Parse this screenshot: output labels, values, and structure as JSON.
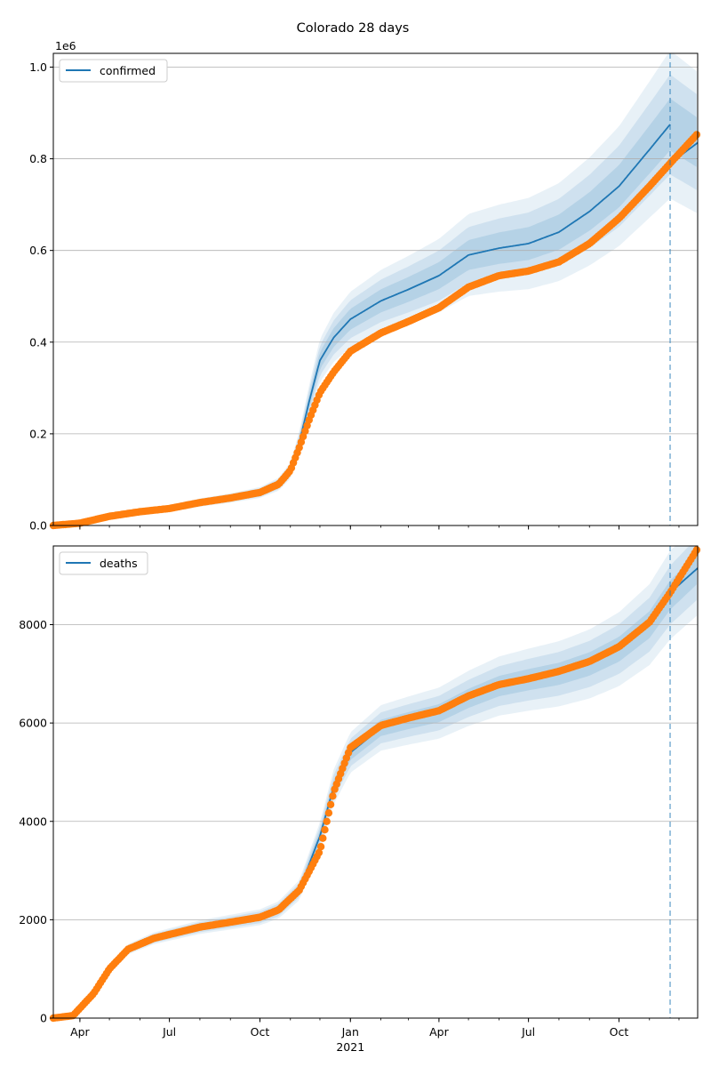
{
  "figure": {
    "title": "Colorado 28 days"
  },
  "chart_data": [
    {
      "type": "line",
      "name": "confirmed-panel",
      "legend": "confirmed",
      "legend_position": "top-left",
      "y_offset_label": "1e6",
      "xlim": [
        "2020-03-05",
        "2021-12-20"
      ],
      "ylim": [
        0,
        1030000
      ],
      "yticks": [
        0,
        200000,
        400000,
        600000,
        800000,
        1000000
      ],
      "ytick_labels": [
        "0.0",
        "0.2",
        "0.4",
        "0.6",
        "0.8",
        "1.0"
      ],
      "grid": "y",
      "forecast_start": "2021-11-22",
      "model_line": {
        "color": "#1f77b4",
        "x": [
          "2020-03-05",
          "2020-04-01",
          "2020-05-01",
          "2020-06-01",
          "2020-07-01",
          "2020-08-01",
          "2020-09-01",
          "2020-10-01",
          "2020-10-20",
          "2020-11-01",
          "2020-11-10",
          "2020-11-20",
          "2020-12-01",
          "2020-12-15",
          "2021-01-01",
          "2021-02-01",
          "2021-03-01",
          "2021-04-01",
          "2021-05-01",
          "2021-06-01",
          "2021-07-01",
          "2021-08-01",
          "2021-09-01",
          "2021-10-01",
          "2021-11-01",
          "2021-11-22",
          "2021-12-20"
        ],
        "y": [
          0,
          5000,
          20000,
          30000,
          37000,
          50000,
          60000,
          72000,
          90000,
          120000,
          180000,
          270000,
          360000,
          410000,
          450000,
          490000,
          515000,
          545000,
          590000,
          605000,
          615000,
          640000,
          685000,
          740000,
          820000,
          875000,
          835000
        ]
      },
      "observed": {
        "color": "#ff7f0e",
        "x": [
          "2020-03-05",
          "2020-04-01",
          "2020-05-01",
          "2020-06-01",
          "2020-07-01",
          "2020-08-01",
          "2020-09-01",
          "2020-10-01",
          "2020-10-20",
          "2020-11-01",
          "2020-11-10",
          "2020-11-20",
          "2020-12-01",
          "2020-12-15",
          "2021-01-01",
          "2021-02-01",
          "2021-03-01",
          "2021-04-01",
          "2021-05-01",
          "2021-06-01",
          "2021-07-01",
          "2021-08-01",
          "2021-09-01",
          "2021-10-01",
          "2021-11-01",
          "2021-11-22",
          "2021-12-20"
        ],
        "y": [
          0,
          5000,
          20000,
          30000,
          37000,
          50000,
          60000,
          72000,
          90000,
          120000,
          170000,
          230000,
          290000,
          335000,
          380000,
          420000,
          445000,
          475000,
          520000,
          545000,
          555000,
          575000,
          615000,
          670000,
          740000,
          790000,
          855000
        ]
      },
      "bands": {
        "color": "#1f77b4",
        "outer_rel": 0.18,
        "mid_rel": 0.12,
        "inner_rel": 0.06
      }
    },
    {
      "type": "line",
      "name": "deaths-panel",
      "legend": "deaths",
      "legend_position": "top-left",
      "xlim": [
        "2020-03-05",
        "2021-12-20"
      ],
      "ylim": [
        0,
        9600
      ],
      "yticks": [
        0,
        2000,
        4000,
        6000,
        8000
      ],
      "ytick_labels": [
        "0",
        "2000",
        "4000",
        "6000",
        "8000"
      ],
      "xtick_labels": [
        "Apr",
        "Jul",
        "Oct",
        "Jan",
        "Apr",
        "Jul",
        "Oct"
      ],
      "xtick_year_label": "2021",
      "grid": "y",
      "forecast_start": "2021-11-22",
      "model_line": {
        "color": "#1f77b4",
        "x": [
          "2020-03-05",
          "2020-03-25",
          "2020-04-15",
          "2020-05-01",
          "2020-05-20",
          "2020-06-15",
          "2020-07-01",
          "2020-08-01",
          "2020-09-01",
          "2020-10-01",
          "2020-10-20",
          "2020-11-10",
          "2020-12-01",
          "2020-12-15",
          "2021-01-01",
          "2021-02-01",
          "2021-03-01",
          "2021-04-01",
          "2021-05-01",
          "2021-06-01",
          "2021-07-01",
          "2021-08-01",
          "2021-09-01",
          "2021-10-01",
          "2021-11-01",
          "2021-11-22",
          "2021-12-20"
        ],
        "y": [
          0,
          50,
          500,
          1000,
          1400,
          1620,
          1700,
          1850,
          1950,
          2050,
          2200,
          2600,
          3700,
          4700,
          5400,
          5900,
          6050,
          6200,
          6500,
          6750,
          6880,
          7000,
          7200,
          7500,
          8000,
          8600,
          9150
        ]
      },
      "observed": {
        "color": "#ff7f0e",
        "x": [
          "2020-03-05",
          "2020-03-25",
          "2020-04-15",
          "2020-05-01",
          "2020-05-20",
          "2020-06-15",
          "2020-07-01",
          "2020-08-01",
          "2020-09-01",
          "2020-10-01",
          "2020-10-20",
          "2020-11-10",
          "2020-12-01",
          "2020-12-15",
          "2021-01-01",
          "2021-02-01",
          "2021-03-01",
          "2021-04-01",
          "2021-05-01",
          "2021-06-01",
          "2021-07-01",
          "2021-08-01",
          "2021-09-01",
          "2021-10-01",
          "2021-11-01",
          "2021-11-22",
          "2021-12-20"
        ],
        "y": [
          0,
          50,
          500,
          1000,
          1400,
          1620,
          1700,
          1850,
          1950,
          2050,
          2200,
          2600,
          3400,
          4600,
          5500,
          5950,
          6100,
          6250,
          6550,
          6780,
          6900,
          7050,
          7250,
          7550,
          8050,
          8650,
          9550
        ]
      },
      "bands": {
        "color": "#1f77b4",
        "outer_rel": 0.1,
        "mid_rel": 0.065,
        "inner_rel": 0.03
      }
    }
  ]
}
